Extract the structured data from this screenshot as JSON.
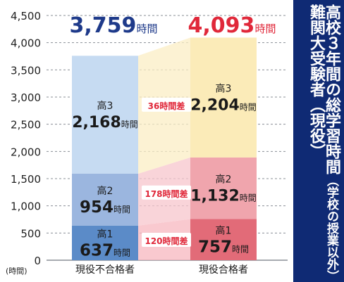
{
  "side_title": {
    "line1": "難関大受験者（現役）",
    "line2_main": "高校３年間の総学習時間",
    "line2_sub": "（学校の授業以外）"
  },
  "chart_data": {
    "type": "bar",
    "stacked": true,
    "ylabel": "(時間)",
    "ylim": [
      0,
      4500
    ],
    "yticks": [
      0,
      500,
      1000,
      1500,
      2000,
      2500,
      3000,
      3500,
      4000,
      4500
    ],
    "ytick_labels": [
      "0",
      "500",
      "1,000",
      "1,500",
      "2,000",
      "2,500",
      "3,000",
      "3,500",
      "4,000",
      "4,500"
    ],
    "grid": true,
    "categories": [
      "現役不合格者",
      "現役合格者"
    ],
    "unit": "時間",
    "totals": [
      {
        "value": 3759,
        "label": "3,759",
        "color": "#1e3a8a"
      },
      {
        "value": 4093,
        "label": "4,093",
        "color": "#e0283a"
      }
    ],
    "series": [
      {
        "name": "高1",
        "values": [
          637,
          757
        ],
        "labels": [
          "637",
          "757"
        ],
        "colors": [
          "#5b8bc8",
          "#e26b78"
        ]
      },
      {
        "name": "高2",
        "values": [
          954,
          1132
        ],
        "labels": [
          "954",
          "1,132"
        ],
        "colors": [
          "#9bb6df",
          "#f0a5ad"
        ]
      },
      {
        "name": "高3",
        "values": [
          2168,
          2204
        ],
        "labels": [
          "2,168",
          "2,204"
        ],
        "colors": [
          "#c6dbf2",
          "#fbebb8"
        ]
      }
    ],
    "differences": [
      {
        "label": "120時間差",
        "value": 120
      },
      {
        "label": "178時間差",
        "value": 178
      },
      {
        "label": "36時間差",
        "value": 36
      }
    ],
    "band_colors": [
      "#f7b7bf",
      "#f7c6cc",
      "#fbedc4"
    ]
  }
}
